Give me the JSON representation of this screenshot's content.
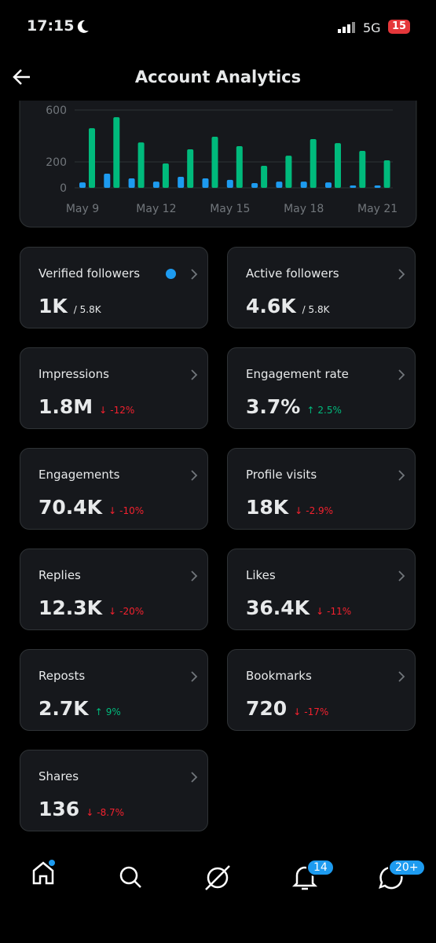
{
  "status_bar": {
    "time": "17:15",
    "network": "5G",
    "battery": "15"
  },
  "header": {
    "title": "Account Analytics"
  },
  "chart_data": {
    "type": "bar",
    "categories": [
      "May 9",
      null,
      null,
      "May 12",
      null,
      null,
      "May 15",
      null,
      null,
      "May 18",
      null,
      null,
      "May 21"
    ],
    "series": [
      {
        "color": "#1d9bf0",
        "values": [
          42,
          109,
          73,
          48,
          85,
          73,
          61,
          36,
          48,
          48,
          42,
          18,
          18
        ]
      },
      {
        "color": "#00ba7c",
        "values": [
          460,
          545,
          350,
          188,
          297,
          394,
          321,
          170,
          248,
          376,
          345,
          285,
          212
        ]
      }
    ],
    "ylim": [
      0,
      600
    ],
    "yticks": [
      0,
      200,
      600
    ],
    "grid": true
  },
  "cards": [
    {
      "label": "Verified followers",
      "value": "1K",
      "total": "/ 5.8K"
    },
    {
      "label": "Active followers",
      "value": "4.6K",
      "total": "/ 5.8K"
    },
    {
      "label": "Impressions",
      "value": "1.8M",
      "change": "-12%"
    },
    {
      "label": "Engagement rate",
      "value": "3.7%",
      "change": "2.5%"
    },
    {
      "label": "Engagements",
      "value": "70.4K",
      "change": "-10%"
    },
    {
      "label": "Profile visits",
      "value": "18K",
      "change": "-2.9%"
    },
    {
      "label": "Replies",
      "value": "12.3K",
      "change": "-20%"
    },
    {
      "label": "Likes",
      "value": "36.4K",
      "change": "-11%"
    },
    {
      "label": "Reposts",
      "value": "2.7K",
      "change": "9%"
    },
    {
      "label": "Bookmarks",
      "value": "720",
      "change": "-17%"
    },
    {
      "label": "Shares",
      "value": "136",
      "change": "-8.7%"
    }
  ],
  "nav": {
    "notifications_badge": "14",
    "messages_badge": "20+"
  }
}
